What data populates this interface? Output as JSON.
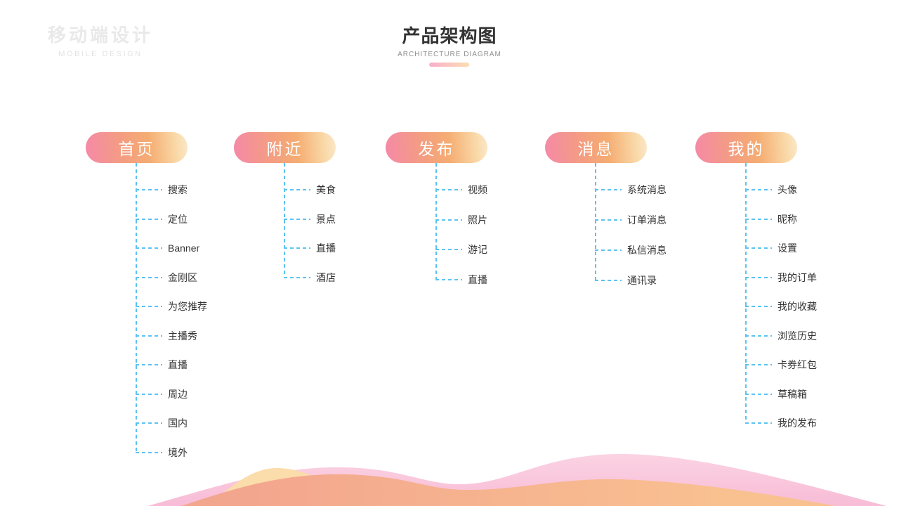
{
  "watermark": {
    "title_cn": "移动端设计",
    "title_en": "MOBILE DESIGN"
  },
  "header": {
    "title": "产品架构图",
    "subtitle": "ARCHITECTURE DIAGRAM"
  },
  "columns": [
    {
      "label": "首页",
      "items": [
        "搜索",
        "定位",
        "Banner",
        "金刚区",
        "为您推荐",
        "主播秀",
        "直播",
        "周边",
        "国内",
        "境外"
      ]
    },
    {
      "label": "附近",
      "items": [
        "美食",
        "景点",
        "直播",
        "酒店"
      ]
    },
    {
      "label": "发布",
      "items": [
        "视频",
        "照片",
        "游记",
        "直播"
      ]
    },
    {
      "label": "消息",
      "items": [
        "系统消息",
        "订单消息",
        "私信消息",
        "通讯录"
      ]
    },
    {
      "label": "我的",
      "items": [
        "头像",
        "昵称",
        "设置",
        "我的订单",
        "我的收藏",
        "浏览历史",
        "卡券红包",
        "草稿箱",
        "我的发布"
      ]
    }
  ],
  "colors": {
    "accent_blue": "#5cc3f1",
    "pill_gradient": [
      "#f589a7",
      "#f49e80",
      "#f5ad72",
      "#f9d9a8",
      "#fbe8cb"
    ],
    "underline_gradient": [
      "#f9aecb",
      "#fbdeb2"
    ],
    "wave_pink_top": "#fbd3e3",
    "wave_pink_bottom": "#f8bcd6",
    "wave_cream": "#fbdcab",
    "wave_orange_left": "#f3a68e",
    "wave_orange_right": "#f9c190"
  }
}
